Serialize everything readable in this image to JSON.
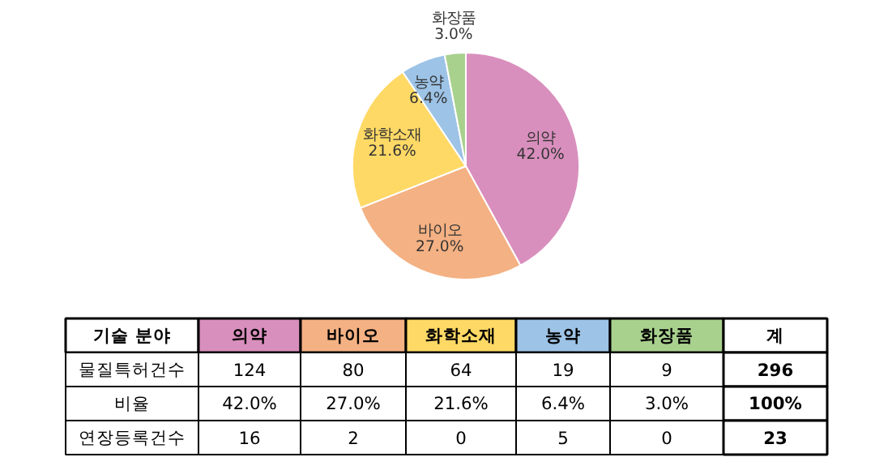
{
  "chart_data": [
    {
      "type": "pie",
      "categories": [
        "의약",
        "바이오",
        "화학소재",
        "농약",
        "화장품"
      ],
      "values": [
        42.0,
        27.0,
        21.6,
        6.4,
        3.0
      ],
      "colors": [
        "#d98fbd",
        "#f4b183",
        "#ffd966",
        "#9dc3e6",
        "#a9d18e"
      ],
      "value_labels": [
        "42.0%",
        "27.0%",
        "21.6%",
        "6.4%",
        "3.0%"
      ]
    },
    {
      "type": "other",
      "categories": [
        "기술 분야",
        "의약",
        "바이오",
        "화학소재",
        "농약",
        "화장품",
        "계"
      ],
      "colors": [
        "#ffffff",
        "#d98fbd",
        "#f4b183",
        "#ffd966",
        "#9dc3e6",
        "#a9d18e",
        "#ffffff"
      ],
      "annotations": [
        "물질특허건수",
        "124",
        "80",
        "64",
        "19",
        "9",
        "296",
        "비율",
        "42.0%",
        "27.0%",
        "21.6%",
        "6.4%",
        "3.0%",
        "100%",
        "연장등록건수",
        "16",
        "2",
        "0",
        "5",
        "0",
        "23"
      ]
    }
  ]
}
